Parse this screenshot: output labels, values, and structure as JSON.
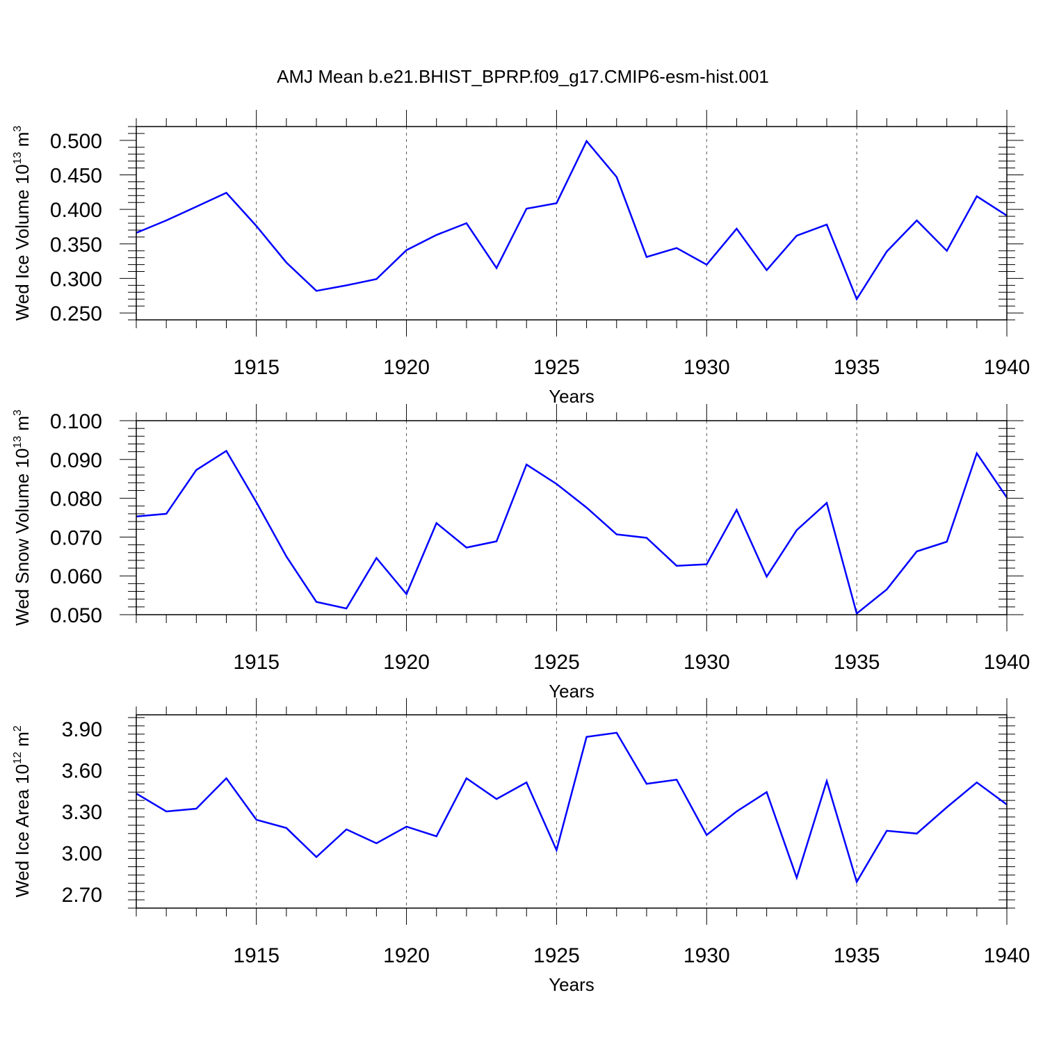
{
  "title": "AMJ Mean b.e21.BHIST_BPRP.f09_g17.CMIP6-esm-hist.001",
  "line_color": "#0000ff",
  "chart_data": [
    {
      "type": "line",
      "ylabel_main": "Wed Ice Volume 10",
      "ylabel_exp": "13",
      "ylabel_unit": "m",
      "ylabel_unit_exp": "3",
      "xlabel": "Years",
      "xlim": [
        1911,
        1940
      ],
      "ylim": [
        0.24,
        0.52
      ],
      "yticks": [
        0.25,
        0.3,
        0.35,
        0.4,
        0.45,
        0.5
      ],
      "ytick_labels": [
        "0.250",
        "0.300",
        "0.350",
        "0.400",
        "0.450",
        "0.500"
      ],
      "xticks": [
        1915,
        1920,
        1925,
        1930,
        1935,
        1940
      ],
      "xtick_labels": [
        "1915",
        "1920",
        "1925",
        "1930",
        "1935",
        "1940"
      ],
      "x": [
        1911,
        1912,
        1913,
        1914,
        1915,
        1916,
        1917,
        1918,
        1919,
        1920,
        1921,
        1922,
        1923,
        1924,
        1925,
        1926,
        1927,
        1928,
        1929,
        1930,
        1931,
        1932,
        1933,
        1934,
        1935,
        1936,
        1937,
        1938,
        1939,
        1940
      ],
      "values": [
        0.366,
        0.384,
        0.404,
        0.424,
        0.376,
        0.323,
        0.282,
        0.29,
        0.299,
        0.341,
        0.363,
        0.38,
        0.315,
        0.401,
        0.409,
        0.499,
        0.447,
        0.331,
        0.344,
        0.32,
        0.372,
        0.312,
        0.362,
        0.378,
        0.27,
        0.339,
        0.384,
        0.34,
        0.419,
        0.391
      ]
    },
    {
      "type": "line",
      "ylabel_main": "Wed Snow Volume 10",
      "ylabel_exp": "13",
      "ylabel_unit": "m",
      "ylabel_unit_exp": "3",
      "xlabel": "Years",
      "xlim": [
        1911,
        1940
      ],
      "ylim": [
        0.05,
        0.1
      ],
      "yticks": [
        0.05,
        0.06,
        0.07,
        0.08,
        0.09,
        0.1
      ],
      "ytick_labels": [
        "0.050",
        "0.060",
        "0.070",
        "0.080",
        "0.090",
        "0.100"
      ],
      "xticks": [
        1915,
        1920,
        1925,
        1930,
        1935,
        1940
      ],
      "xtick_labels": [
        "1915",
        "1920",
        "1925",
        "1930",
        "1935",
        "1940"
      ],
      "x": [
        1911,
        1912,
        1913,
        1914,
        1915,
        1916,
        1917,
        1918,
        1919,
        1920,
        1921,
        1922,
        1923,
        1924,
        1925,
        1926,
        1927,
        1928,
        1929,
        1930,
        1931,
        1932,
        1933,
        1934,
        1935,
        1936,
        1937,
        1938,
        1939,
        1940
      ],
      "values": [
        0.0753,
        0.076,
        0.0873,
        0.0922,
        0.079,
        0.065,
        0.0533,
        0.0516,
        0.0646,
        0.0553,
        0.0736,
        0.0673,
        0.0689,
        0.0887,
        0.0837,
        0.0776,
        0.0707,
        0.0698,
        0.0626,
        0.063,
        0.077,
        0.0598,
        0.0718,
        0.0788,
        0.0503,
        0.0565,
        0.0663,
        0.0688,
        0.0916,
        0.0802
      ]
    },
    {
      "type": "line",
      "ylabel_main": "Wed Ice Area 10",
      "ylabel_exp": "12",
      "ylabel_unit": "m",
      "ylabel_unit_exp": "2",
      "xlabel": "Years",
      "xlim": [
        1911,
        1940
      ],
      "ylim": [
        2.6,
        4.0
      ],
      "yticks": [
        2.7,
        3.0,
        3.3,
        3.6,
        3.9
      ],
      "ytick_labels": [
        "2.70",
        "3.00",
        "3.30",
        "3.60",
        "3.90"
      ],
      "xticks": [
        1915,
        1920,
        1925,
        1930,
        1935,
        1940
      ],
      "xtick_labels": [
        "1915",
        "1920",
        "1925",
        "1930",
        "1935",
        "1940"
      ],
      "x": [
        1911,
        1912,
        1913,
        1914,
        1915,
        1916,
        1917,
        1918,
        1919,
        1920,
        1921,
        1922,
        1923,
        1924,
        1925,
        1926,
        1927,
        1928,
        1929,
        1930,
        1931,
        1932,
        1933,
        1934,
        1935,
        1936,
        1937,
        1938,
        1939,
        1940
      ],
      "values": [
        3.43,
        3.3,
        3.32,
        3.54,
        3.24,
        3.18,
        2.97,
        3.17,
        3.07,
        3.19,
        3.12,
        3.54,
        3.39,
        3.51,
        3.02,
        3.84,
        3.87,
        3.5,
        3.53,
        3.13,
        3.3,
        3.44,
        2.82,
        3.52,
        2.79,
        3.16,
        3.14,
        3.33,
        3.51,
        3.35
      ]
    }
  ]
}
